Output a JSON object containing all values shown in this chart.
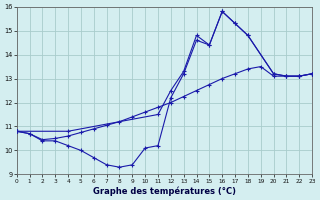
{
  "title": "Graphe des températures (°C)",
  "bg_color": "#d4eef0",
  "grid_color": "#a8cccc",
  "line_color": "#1a1aaa",
  "xlim": [
    0,
    23
  ],
  "ylim": [
    9,
    16
  ],
  "yticks": [
    9,
    10,
    11,
    12,
    13,
    14,
    15,
    16
  ],
  "xticks": [
    0,
    1,
    2,
    3,
    4,
    5,
    6,
    7,
    8,
    9,
    10,
    11,
    12,
    13,
    14,
    15,
    16,
    17,
    18,
    19,
    20,
    21,
    22,
    23
  ],
  "curve1_x": [
    0,
    1,
    2,
    3,
    4,
    5,
    6,
    7,
    8,
    9,
    10,
    11,
    12,
    13,
    14,
    15,
    16,
    17,
    18,
    20,
    21,
    22,
    23
  ],
  "curve1_y": [
    10.8,
    10.7,
    10.4,
    10.4,
    10.2,
    10.0,
    9.7,
    9.4,
    9.3,
    9.4,
    10.1,
    10.2,
    12.2,
    13.2,
    14.6,
    14.4,
    15.8,
    15.3,
    14.8,
    13.2,
    13.1,
    13.1,
    13.2
  ],
  "curve2_x": [
    0,
    4,
    11,
    12,
    13,
    14,
    15,
    16,
    17,
    18,
    20,
    21,
    22,
    23
  ],
  "curve2_y": [
    10.8,
    10.8,
    11.5,
    12.5,
    13.3,
    14.8,
    14.4,
    15.8,
    15.3,
    14.8,
    13.2,
    13.1,
    13.1,
    13.2
  ],
  "curve3_x": [
    0,
    1,
    2,
    3,
    4,
    5,
    6,
    7,
    8,
    9,
    10,
    11,
    12,
    13,
    14,
    15,
    16,
    17,
    18,
    19,
    20,
    21,
    22,
    23
  ],
  "curve3_y": [
    10.8,
    10.7,
    10.45,
    10.5,
    10.6,
    10.75,
    10.9,
    11.05,
    11.2,
    11.4,
    11.6,
    11.8,
    12.0,
    12.25,
    12.5,
    12.75,
    13.0,
    13.2,
    13.4,
    13.5,
    13.1,
    13.1,
    13.1,
    13.2
  ]
}
